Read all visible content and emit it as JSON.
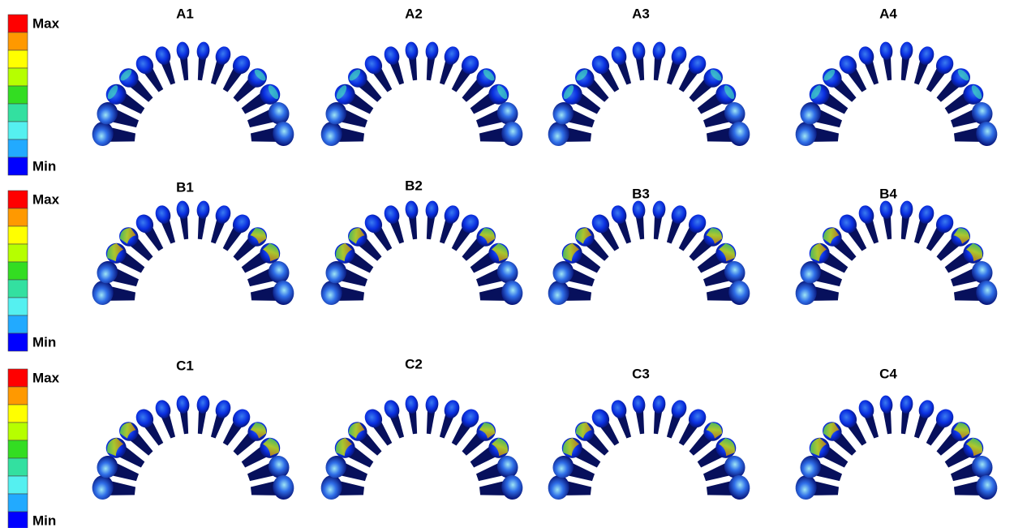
{
  "legends": [
    {
      "max": "Max",
      "min": "Min"
    },
    {
      "max": "Max",
      "min": "Min"
    },
    {
      "max": "Max",
      "min": "Min"
    }
  ],
  "panels": [
    [
      "A1",
      "A2",
      "A3",
      "A4"
    ],
    [
      "B1",
      "B2",
      "B3",
      "B4"
    ],
    [
      "C1",
      "C2",
      "C3",
      "C4"
    ]
  ]
}
